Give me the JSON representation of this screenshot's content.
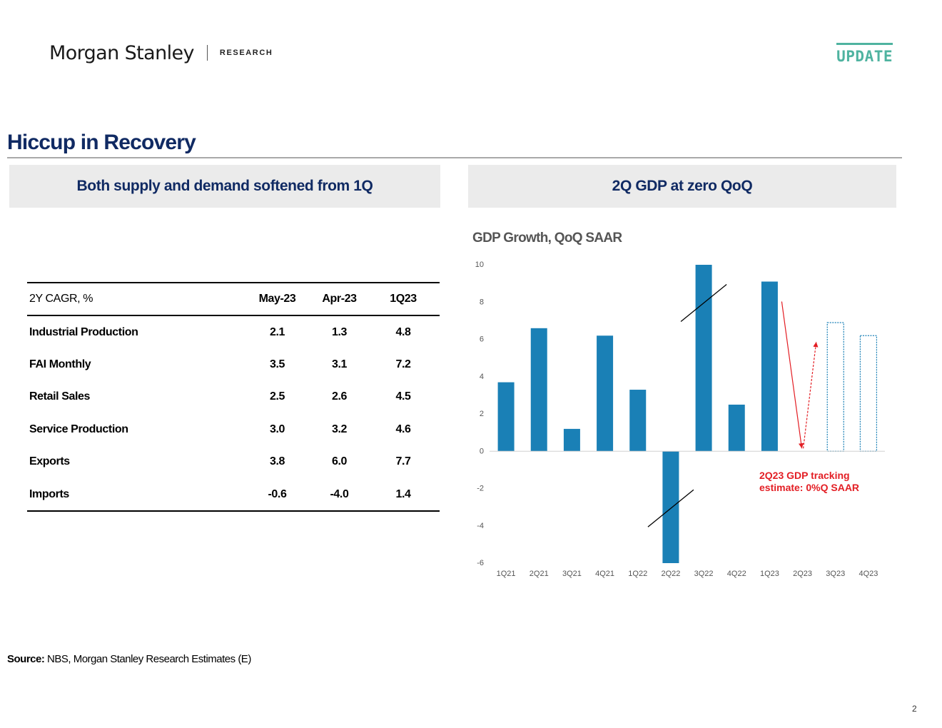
{
  "header": {
    "brand": "Morgan Stanley",
    "brand_sub": "RESEARCH",
    "tag": "UPDATE"
  },
  "title": "Hiccup in Recovery",
  "left_panel": {
    "heading": "Both supply and demand softened from 1Q",
    "table": {
      "columns": [
        "2Y CAGR, %",
        "May-23",
        "Apr-23",
        "1Q23"
      ],
      "rows": [
        [
          "Industrial Production",
          "2.1",
          "1.3",
          "4.8"
        ],
        [
          "FAI Monthly",
          "3.5",
          "3.1",
          "7.2"
        ],
        [
          "Retail Sales",
          "2.5",
          "2.6",
          "4.5"
        ],
        [
          "Service Production",
          "3.0",
          "3.2",
          "4.6"
        ],
        [
          "Exports",
          "3.8",
          "6.0",
          "7.7"
        ],
        [
          "Imports",
          "-0.6",
          "-4.0",
          "1.4"
        ]
      ]
    }
  },
  "right_panel": {
    "heading": "2Q GDP at zero QoQ"
  },
  "chart_data": {
    "type": "bar",
    "title": "GDP Growth, QoQ SAAR",
    "categories": [
      "1Q21",
      "2Q21",
      "3Q21",
      "4Q21",
      "1Q22",
      "2Q22",
      "3Q22",
      "4Q22",
      "1Q23",
      "2Q23",
      "3Q23",
      "4Q23"
    ],
    "values": [
      3.7,
      6.6,
      1.2,
      6.2,
      3.3,
      -6.0,
      10.0,
      2.5,
      9.1,
      0.0,
      6.9,
      6.2
    ],
    "estimate": [
      false,
      false,
      false,
      false,
      false,
      false,
      false,
      false,
      false,
      true,
      true,
      true
    ],
    "yticks": [
      "10",
      "8",
      "6",
      "4",
      "2",
      "0",
      "-2",
      "-4",
      "-6"
    ],
    "ylim": [
      -6,
      10
    ],
    "axis_break_on": [
      "3Q22",
      "2Q22"
    ],
    "annotation": {
      "lines": [
        "2Q23 GDP tracking",
        "estimate: 0%Q SAAR"
      ],
      "color": "#e31e24"
    },
    "bar_color": "#1a80b6",
    "estimate_border_color": "#1a80b6",
    "grid": false
  },
  "source": {
    "label": "Source:",
    "text": " NBS, Morgan Stanley Research Estimates (E)"
  },
  "page_number": "2"
}
